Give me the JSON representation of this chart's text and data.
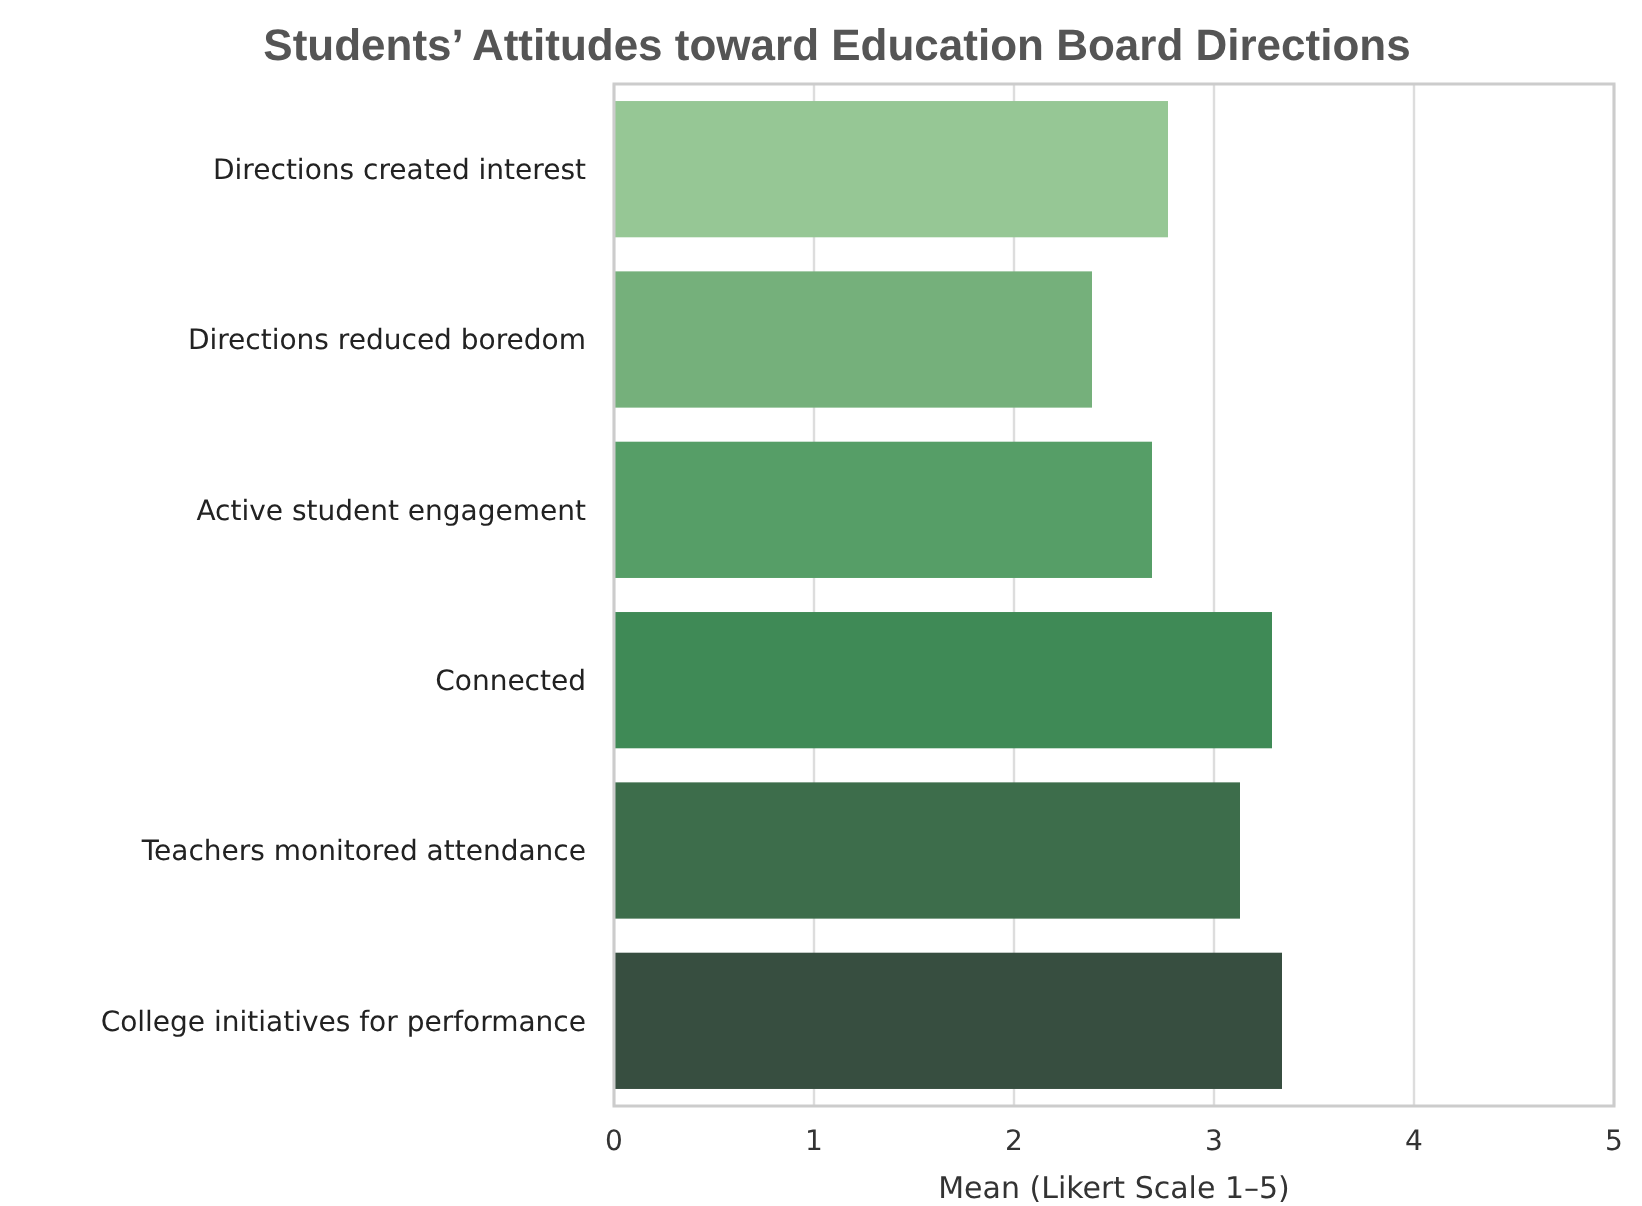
{
  "chart_data": {
    "type": "bar",
    "orientation": "horizontal",
    "title": "Students’ Attitudes toward Education Board Directions",
    "xlabel": "Mean (Likert Scale 1–5)",
    "categories": [
      "Directions created interest",
      "Directions reduced boredom",
      "Active student engagement",
      "Connected",
      "Teachers monitored attendance",
      "College initiatives for performance"
    ],
    "values": [
      2.77,
      2.39,
      2.69,
      3.29,
      3.13,
      3.34
    ],
    "colors": [
      "#96c795",
      "#75b07b",
      "#569e67",
      "#3f8a56",
      "#3d6d4b",
      "#374e40"
    ],
    "xlim": [
      0,
      5
    ],
    "xticks": [
      0,
      1,
      2,
      3,
      4,
      5
    ],
    "grid": "x"
  }
}
